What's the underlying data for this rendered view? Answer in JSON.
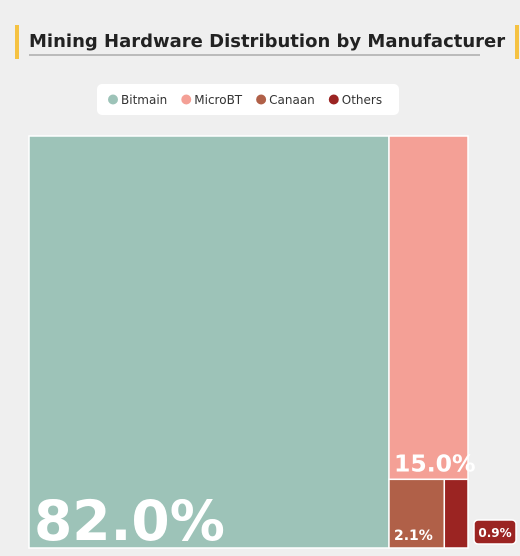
{
  "chart_data": {
    "type": "treemap",
    "title": "Mining Hardware Distribution by Manufacturer",
    "categories": [
      "Bitmain",
      "MicroBT",
      "Canaan",
      "Others"
    ],
    "values": [
      82,
      15,
      2.1,
      0.9
    ],
    "value_labels": [
      "82.0%",
      "15.0%",
      "2.1%",
      "0.9%"
    ],
    "colors": [
      "#9dc3b8",
      "#f4a096",
      "#b06048",
      "#9b2422"
    ],
    "legend": "top"
  }
}
